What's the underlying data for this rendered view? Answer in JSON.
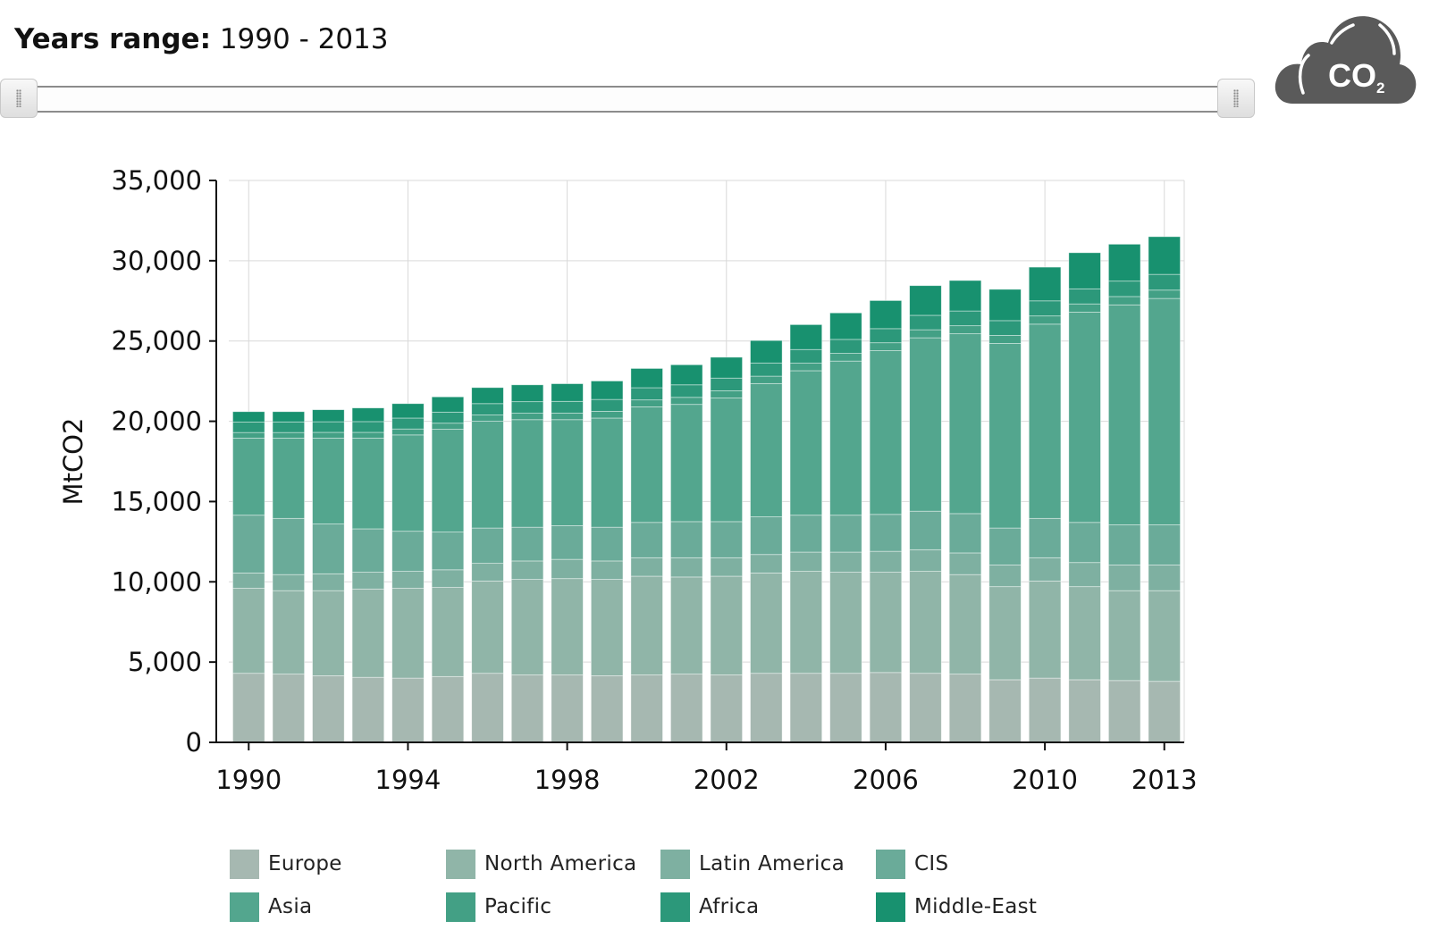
{
  "header": {
    "label": "Years range:",
    "value": "1990 - 2013"
  },
  "slider": {
    "start_year": 1990,
    "end_year": 2013
  },
  "logo": {
    "text": "CO",
    "subscript": "2",
    "color": "#5a5a5a"
  },
  "chart_data": {
    "type": "bar",
    "stacked": true,
    "title": "",
    "xlabel": "",
    "ylabel": "MtCO2",
    "ylim": [
      0,
      35000
    ],
    "yticks": [
      0,
      5000,
      10000,
      15000,
      20000,
      25000,
      30000,
      35000
    ],
    "ytick_labels": [
      "0",
      "5,000",
      "10,000",
      "15,000",
      "20,000",
      "25,000",
      "30,000",
      "35,000"
    ],
    "xtick_labels": [
      "1990",
      "1994",
      "1998",
      "2002",
      "2006",
      "2010",
      "2013"
    ],
    "grid": true,
    "legend_position": "bottom",
    "categories": [
      "1990",
      "1991",
      "1992",
      "1993",
      "1994",
      "1995",
      "1996",
      "1997",
      "1998",
      "1999",
      "2000",
      "2001",
      "2002",
      "2003",
      "2004",
      "2005",
      "2006",
      "2007",
      "2008",
      "2009",
      "2010",
      "2011",
      "2012",
      "2013"
    ],
    "series": [
      {
        "name": "Europe",
        "color": "#a6b8b1",
        "values": [
          4300,
          4250,
          4150,
          4050,
          4000,
          4100,
          4300,
          4200,
          4200,
          4150,
          4200,
          4250,
          4200,
          4300,
          4300,
          4300,
          4350,
          4300,
          4250,
          3900,
          4000,
          3900,
          3850,
          3800
        ]
      },
      {
        "name": "North America",
        "color": "#90b5a8",
        "values": [
          5300,
          5200,
          5300,
          5500,
          5600,
          5550,
          5750,
          5950,
          6000,
          6000,
          6150,
          6050,
          6150,
          6250,
          6350,
          6300,
          6250,
          6350,
          6200,
          5800,
          6050,
          5800,
          5600,
          5650
        ]
      },
      {
        "name": "Latin America",
        "color": "#7eb0a1",
        "values": [
          950,
          1000,
          1050,
          1050,
          1050,
          1100,
          1100,
          1150,
          1200,
          1150,
          1150,
          1200,
          1150,
          1150,
          1200,
          1250,
          1300,
          1350,
          1350,
          1350,
          1450,
          1500,
          1600,
          1600
        ]
      },
      {
        "name": "CIS",
        "color": "#6aab99",
        "values": [
          3600,
          3500,
          3100,
          2700,
          2500,
          2350,
          2200,
          2100,
          2100,
          2100,
          2200,
          2250,
          2250,
          2350,
          2300,
          2300,
          2300,
          2400,
          2450,
          2300,
          2450,
          2500,
          2500,
          2500
        ]
      },
      {
        "name": "Asia",
        "color": "#53a68e",
        "values": [
          4800,
          5000,
          5350,
          5650,
          6000,
          6400,
          6650,
          6700,
          6600,
          6800,
          7200,
          7300,
          7700,
          8300,
          9000,
          9600,
          10200,
          10800,
          11200,
          11500,
          12100,
          13100,
          13700,
          14100
        ]
      },
      {
        "name": "Pacific",
        "color": "#43a085",
        "values": [
          350,
          350,
          360,
          360,
          370,
          380,
          390,
          400,
          410,
          420,
          430,
          440,
          450,
          460,
          470,
          480,
          490,
          500,
          500,
          500,
          510,
          510,
          520,
          520
        ]
      },
      {
        "name": "Africa",
        "color": "#2c987a",
        "values": [
          650,
          660,
          660,
          670,
          680,
          690,
          710,
          720,
          730,
          740,
          760,
          780,
          790,
          820,
          850,
          870,
          880,
          900,
          920,
          920,
          940,
          940,
          960,
          980
        ]
      },
      {
        "name": "Middle-East",
        "color": "#18916f",
        "values": [
          650,
          640,
          750,
          850,
          900,
          950,
          1000,
          1050,
          1100,
          1150,
          1200,
          1250,
          1300,
          1400,
          1550,
          1650,
          1750,
          1850,
          1900,
          1950,
          2100,
          2250,
          2300,
          2350
        ]
      }
    ]
  }
}
